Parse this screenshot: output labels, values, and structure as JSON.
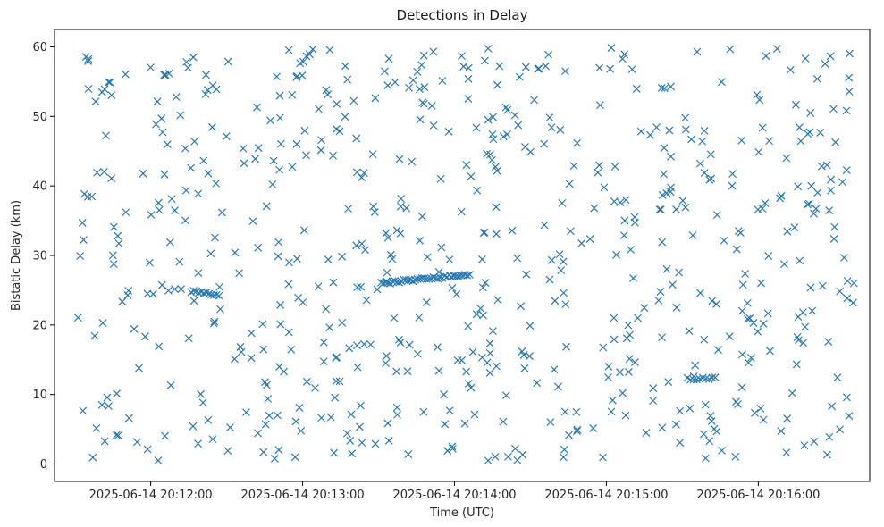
{
  "chart_data": {
    "type": "scatter",
    "title": "Detections in Delay",
    "xlabel": "Time (UTC)",
    "ylabel": "Bistatic Delay (km)",
    "x_unit": "UTC datetime",
    "xlim": [
      "2025-06-14 20:11:22",
      "2025-06-14 20:16:44"
    ],
    "ylim": [
      -2.5,
      62.5
    ],
    "x_ticks": [
      "2025-06-14 20:12:00",
      "2025-06-14 20:13:00",
      "2025-06-14 20:14:00",
      "2025-06-14 20:15:00",
      "2025-06-14 20:16:00"
    ],
    "y_ticks": [
      0,
      10,
      20,
      30,
      40,
      50,
      60
    ],
    "marker": "x",
    "color": "#1f77b4",
    "grid": false,
    "legend": "none",
    "random_detection_count": 640,
    "random_detection_time_range": [
      "2025-06-14 20:11:31",
      "2025-06-14 20:16:38"
    ],
    "random_detection_delay_range": [
      0.5,
      60
    ],
    "tracks": [
      {
        "start": "2025-06-14 20:12:07",
        "end": "2025-06-14 20:12:12",
        "delay_start": 25.0,
        "delay_end": 25.0,
        "points": 3
      },
      {
        "start": "2025-06-14 20:12:16",
        "end": "2025-06-14 20:12:27",
        "delay_start": 24.8,
        "delay_end": 24.3,
        "points": 12
      },
      {
        "start": "2025-06-14 20:13:31",
        "end": "2025-06-14 20:14:06",
        "delay_start": 26.0,
        "delay_end": 27.3,
        "points": 40
      },
      {
        "start": "2025-06-14 20:15:32",
        "end": "2025-06-14 20:15:43",
        "delay_start": 12.3,
        "delay_end": 12.3,
        "points": 10
      },
      {
        "start": "2025-06-14 20:12:59",
        "end": "2025-06-14 20:13:04",
        "delay_start": 57.5,
        "delay_end": 59.5,
        "points": 5
      },
      {
        "start": "2025-06-14 20:13:42",
        "end": "2025-06-14 20:13:47",
        "delay_start": 54.0,
        "delay_end": 57.5,
        "points": 4
      }
    ]
  }
}
